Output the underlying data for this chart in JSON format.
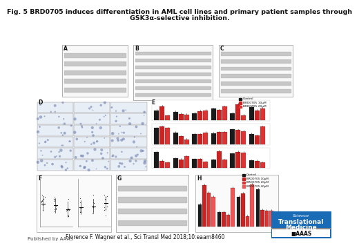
{
  "title_line1": "Fig. 5 BRD0705 induces differentiation in AML cell lines and primary patient samples through",
  "title_line2": "GSK3α-selective inhibition.",
  "citation": "Florence F. Wagner et al., Sci Transl Med 2018;10:eaam8460",
  "published": "Published by AAAS",
  "bg_color": "#ffffff",
  "title_fontsize": 6.8,
  "citation_fontsize": 5.5,
  "published_fontsize": 5.0,
  "panel_label_fontsize": 5.5,
  "bar_colors_3": [
    "#1a1a1a",
    "#cc2222",
    "#dd3333"
  ],
  "bar_colors_4": [
    "#1a1a1a",
    "#cc2222",
    "#dd3333",
    "#ee5555"
  ],
  "logo_bg": "#1a6bb5",
  "logo_text_color": "#ffffff",
  "logo_stripe_color": "#cc0000"
}
